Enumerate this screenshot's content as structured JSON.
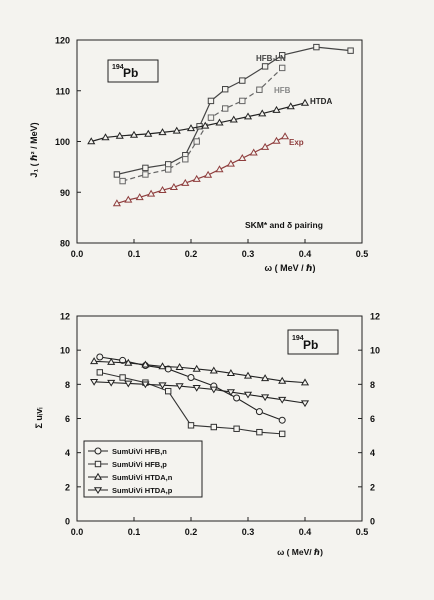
{
  "chart_data": [
    {
      "type": "line",
      "title": "",
      "panel_label": {
        "mass": "194",
        "element": "Pb"
      },
      "xlabel": "ω   ( MeV / ℏ)",
      "ylabel": "J₁ ( ℏ² / MeV)",
      "xlim": [
        0,
        0.5
      ],
      "ylim": [
        80,
        120
      ],
      "x_ticks": [
        "0.0",
        "0.1",
        "0.2",
        "0.3",
        "0.4",
        "0.5"
      ],
      "y_ticks": [
        "80",
        "90",
        "100",
        "110",
        "120"
      ],
      "annotation": "SKM* and  δ pairing",
      "series": [
        {
          "name": "HFB-LN",
          "color": "#444444",
          "marker": "square-open",
          "dash": "solid",
          "x": [
            0.07,
            0.12,
            0.16,
            0.19,
            0.215,
            0.235,
            0.26,
            0.29,
            0.33,
            0.36,
            0.42,
            0.48
          ],
          "y": [
            93.5,
            94.8,
            95.5,
            97.3,
            103.0,
            108.0,
            110.3,
            112.0,
            114.8,
            117.0,
            118.6,
            117.9
          ]
        },
        {
          "name": "HFB",
          "color": "#666666",
          "marker": "square-open",
          "dash": "dashed",
          "x": [
            0.08,
            0.12,
            0.16,
            0.19,
            0.21,
            0.235,
            0.26,
            0.29,
            0.32,
            0.36
          ],
          "y": [
            92.2,
            93.5,
            94.5,
            96.5,
            100.0,
            104.7,
            106.5,
            108.0,
            110.2,
            114.5
          ]
        },
        {
          "name": "HTDA",
          "color": "#222222",
          "marker": "triangle-open",
          "dash": "solid",
          "x": [
            0.025,
            0.05,
            0.075,
            0.1,
            0.125,
            0.15,
            0.175,
            0.2,
            0.225,
            0.25,
            0.275,
            0.3,
            0.325,
            0.35,
            0.375,
            0.4
          ],
          "y": [
            100.0,
            100.8,
            101.1,
            101.3,
            101.5,
            101.8,
            102.1,
            102.6,
            103.1,
            103.7,
            104.3,
            104.9,
            105.5,
            106.2,
            106.9,
            107.6
          ]
        },
        {
          "name": "Exp",
          "color": "#8e3d3d",
          "marker": "triangle-open",
          "dash": "solid",
          "x": [
            0.07,
            0.09,
            0.11,
            0.13,
            0.15,
            0.17,
            0.19,
            0.21,
            0.23,
            0.25,
            0.27,
            0.29,
            0.31,
            0.33,
            0.35,
            0.365
          ],
          "y": [
            87.8,
            88.5,
            89.0,
            89.7,
            90.4,
            91.0,
            91.8,
            92.6,
            93.4,
            94.5,
            95.6,
            96.7,
            97.8,
            98.9,
            100.1,
            101.0
          ]
        }
      ]
    },
    {
      "type": "line",
      "title": "",
      "panel_label": {
        "mass": "194",
        "element": "Pb"
      },
      "xlabel": "ω  ( MeV/ ℏ)",
      "ylabel": "Σ uᵢvᵢ",
      "xlim": [
        0,
        0.5
      ],
      "ylim": [
        0,
        12
      ],
      "x_ticks": [
        "0.0",
        "0.1",
        "0.2",
        "0.3",
        "0.4",
        "0.5"
      ],
      "y_ticks": [
        "0",
        "2",
        "4",
        "6",
        "8",
        "10",
        "12"
      ],
      "y2_ticks": [
        "0",
        "2",
        "4",
        "6",
        "8",
        "10",
        "12"
      ],
      "legend_position": "bottom-left",
      "series": [
        {
          "name": "SumUiVi HFB,n",
          "color": "#222222",
          "marker": "circle-open",
          "x": [
            0.04,
            0.08,
            0.12,
            0.16,
            0.2,
            0.24,
            0.28,
            0.32,
            0.36
          ],
          "y": [
            9.6,
            9.4,
            9.1,
            8.9,
            8.4,
            7.9,
            7.2,
            6.4,
            5.9
          ]
        },
        {
          "name": "SumUiVi HFB,p",
          "color": "#333333",
          "marker": "square-open",
          "x": [
            0.04,
            0.08,
            0.12,
            0.16,
            0.2,
            0.24,
            0.28,
            0.32,
            0.36
          ],
          "y": [
            8.7,
            8.4,
            8.1,
            7.6,
            5.6,
            5.5,
            5.4,
            5.2,
            5.1
          ]
        },
        {
          "name": "SumUiVi HTDA,n",
          "color": "#222222",
          "marker": "triangle-up-open",
          "x": [
            0.03,
            0.06,
            0.09,
            0.12,
            0.15,
            0.18,
            0.21,
            0.24,
            0.27,
            0.3,
            0.33,
            0.36,
            0.4
          ],
          "y": [
            9.35,
            9.3,
            9.25,
            9.15,
            9.05,
            9.0,
            8.9,
            8.8,
            8.65,
            8.5,
            8.35,
            8.2,
            8.1
          ]
        },
        {
          "name": "SumUiVi HTDA,p",
          "color": "#222222",
          "marker": "triangle-down-open",
          "x": [
            0.03,
            0.06,
            0.09,
            0.12,
            0.15,
            0.18,
            0.21,
            0.24,
            0.27,
            0.3,
            0.33,
            0.36,
            0.4
          ],
          "y": [
            8.15,
            8.1,
            8.05,
            8.0,
            7.95,
            7.9,
            7.8,
            7.7,
            7.55,
            7.4,
            7.25,
            7.1,
            6.9
          ]
        }
      ]
    }
  ]
}
